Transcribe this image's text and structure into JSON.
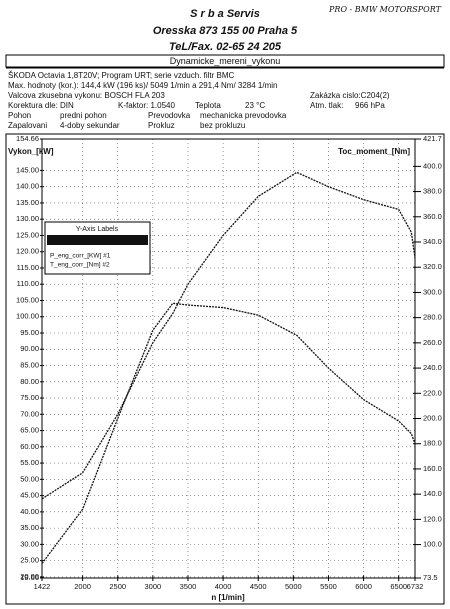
{
  "header": {
    "title": "S r b a   Servis",
    "address": "Oresska 873      155 00 Praha 5",
    "phone": "TeL/Fax. 02-65 24 205",
    "handwritten": "PRO - BMW MOTORSPORT",
    "report": "Dynamicke_mereni_vykonu"
  },
  "info": {
    "vehicle": "ŠKODA Octavia 1,8T20V; Program URT; serie vzduch. filtr BMC",
    "max": "Max. hodnoty (kor.):  144,4 kW (196 ks)/ 5049 1/min  a  291,4 Nm/ 3284 1/min",
    "dyno": "Valcova zkusebna vykonu:  BOSCH FLA 203",
    "order": "Zakázka cislo:C204(2)",
    "correction": "Korektura dle: DIN",
    "kfactor": "K-faktor:  1.0540",
    "temp_label": "Teplota",
    "temp": "23 °C",
    "pressure_label": "Atm. tlak:",
    "pressure": "966 hPa",
    "drive_label": "Pohon",
    "drive": "predni pohon",
    "gearbox_label": "Prevodovka",
    "gearbox": "mechanicka prevodovka",
    "ignition_label": "Zapalovani",
    "ignition": "4-doby sekundar",
    "slip_label": "Prokluz",
    "slip": "bez prokluzu"
  },
  "chart_data": {
    "type": "line",
    "y_label": "Vykon_[kW]",
    "y2_label": "Toc_moment_[Nm]",
    "x_label": "n [1/min]",
    "legend_title": "Y-Axis Labels",
    "x": [
      1422,
      2000,
      2500,
      3000,
      3284,
      3500,
      4000,
      4500,
      5049,
      5500,
      6000,
      6500,
      6680,
      6732
    ],
    "series": [
      {
        "name": "P_eng_corr_[KW] #1",
        "color": "#111",
        "values": [
          44,
          52,
          70,
          92,
          101,
          110,
          125,
          137,
          144.4,
          140,
          136,
          133,
          126,
          118
        ]
      },
      {
        "name": "T_eng_corr_[Nm] #2",
        "color": "#111",
        "axis": "y2",
        "values": [
          85,
          128,
          200,
          270,
          291.4,
          290,
          288,
          282,
          266,
          240,
          215,
          198,
          188,
          180
        ]
      }
    ],
    "xlim": [
      1422,
      6732
    ],
    "xticks": [
      1422,
      2000,
      2500,
      3000,
      3500,
      4000,
      4500,
      5000,
      5500,
      6000,
      6500,
      6732
    ],
    "ylim": [
      19.66,
      154.66
    ],
    "yticks": [
      {
        "value": 154.66,
        "label": "154.66"
      },
      {
        "value": 145,
        "label": "145.00"
      },
      {
        "value": 140,
        "label": "140.00"
      },
      {
        "value": 135,
        "label": "135.00"
      },
      {
        "value": 130,
        "label": "130.00"
      },
      {
        "value": 125,
        "label": "125.00"
      },
      {
        "value": 120,
        "label": "120.00"
      },
      {
        "value": 115,
        "label": "115.00"
      },
      {
        "value": 110,
        "label": "110.00"
      },
      {
        "value": 105,
        "label": "105.00"
      },
      {
        "value": 100,
        "label": "100.00"
      },
      {
        "value": 95,
        "label": "95.00"
      },
      {
        "value": 90,
        "label": "90.00"
      },
      {
        "value": 85,
        "label": "85.00"
      },
      {
        "value": 80,
        "label": "80.00"
      },
      {
        "value": 75,
        "label": "75.00"
      },
      {
        "value": 70,
        "label": "70.00"
      },
      {
        "value": 65,
        "label": "65.00"
      },
      {
        "value": 60,
        "label": "60.00"
      },
      {
        "value": 55,
        "label": "55.00"
      },
      {
        "value": 50,
        "label": "50.00"
      },
      {
        "value": 45,
        "label": "45.00"
      },
      {
        "value": 40,
        "label": "40.00"
      },
      {
        "value": 35,
        "label": "35.00"
      },
      {
        "value": 30,
        "label": "30.00"
      },
      {
        "value": 25,
        "label": "25.00"
      },
      {
        "value": 20,
        "label": "20.00"
      },
      {
        "value": 19.66,
        "label": "19.66"
      }
    ],
    "y2lim": [
      73.5,
      421.7
    ],
    "y2ticks": [
      421.7,
      {
        "value": 400,
        "label": "400.0"
      },
      {
        "value": 380,
        "label": "380.0"
      },
      {
        "value": 360,
        "label": "360.0"
      },
      {
        "value": 340,
        "label": "340.0"
      },
      {
        "value": 320,
        "label": "320.0"
      },
      {
        "value": 300,
        "label": "300.0"
      },
      {
        "value": 280,
        "label": "280.0"
      },
      {
        "value": 260,
        "label": "260.0"
      },
      {
        "value": 240,
        "label": "240.0"
      },
      {
        "value": 220,
        "label": "220.0"
      },
      {
        "value": 200,
        "label": "200.0"
      },
      {
        "value": 180,
        "label": "180.0"
      },
      {
        "value": 160,
        "label": "160.0"
      },
      {
        "value": 140,
        "label": "140.0"
      },
      {
        "value": 120,
        "label": "120.0"
      },
      {
        "value": 100,
        "label": "100.0"
      },
      73.5
    ],
    "grid": true
  }
}
